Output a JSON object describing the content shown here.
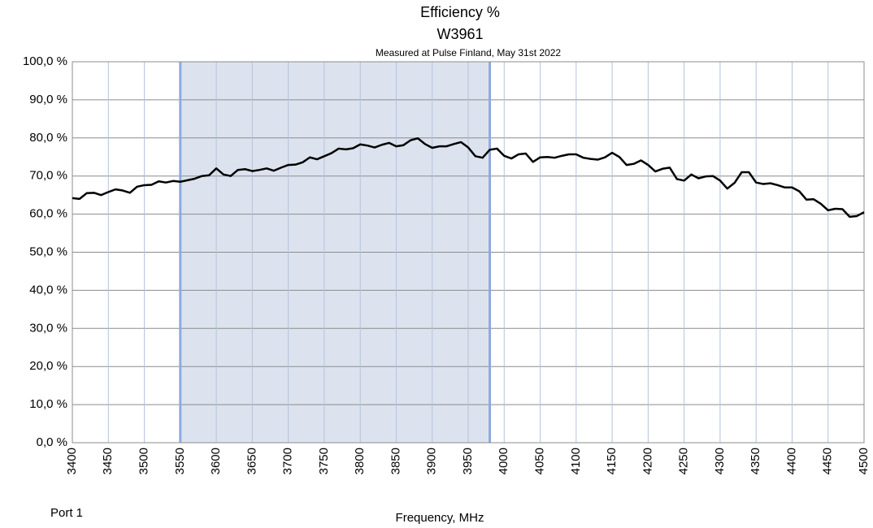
{
  "chart_data": {
    "type": "line",
    "title": "Efficiency %",
    "subtitle": "W3961",
    "note": "Measured at Pulse Finland, May 31st 2022",
    "xlabel": "Frequency, MHz",
    "annotation": "Port 1",
    "x": [
      3400,
      3410,
      3420,
      3430,
      3440,
      3450,
      3460,
      3470,
      3480,
      3490,
      3500,
      3510,
      3520,
      3530,
      3540,
      3550,
      3560,
      3570,
      3580,
      3590,
      3600,
      3610,
      3620,
      3630,
      3640,
      3650,
      3660,
      3670,
      3680,
      3690,
      3700,
      3710,
      3720,
      3730,
      3740,
      3750,
      3760,
      3770,
      3780,
      3790,
      3800,
      3810,
      3820,
      3830,
      3840,
      3850,
      3860,
      3870,
      3880,
      3890,
      3900,
      3910,
      3920,
      3930,
      3940,
      3950,
      3960,
      3970,
      3980,
      3990,
      4000,
      4010,
      4020,
      4030,
      4040,
      4050,
      4060,
      4070,
      4080,
      4090,
      4100,
      4110,
      4120,
      4130,
      4140,
      4150,
      4160,
      4170,
      4180,
      4190,
      4200,
      4210,
      4220,
      4230,
      4240,
      4250,
      4260,
      4270,
      4280,
      4290,
      4300,
      4310,
      4320,
      4330,
      4340,
      4350,
      4360,
      4370,
      4380,
      4390,
      4400,
      4410,
      4420,
      4430,
      4440,
      4450,
      4460,
      4470,
      4480,
      4490,
      4500
    ],
    "series": [
      {
        "name": "Port 1",
        "color": "#000000",
        "values": [
          64.2,
          64.0,
          65.5,
          65.6,
          65.0,
          65.8,
          66.5,
          66.2,
          65.6,
          67.2,
          67.6,
          67.7,
          68.6,
          68.3,
          68.7,
          68.5,
          68.9,
          69.3,
          70.0,
          70.2,
          72.0,
          70.4,
          70.0,
          71.6,
          71.8,
          71.3,
          71.6,
          72.0,
          71.4,
          72.2,
          72.9,
          73.0,
          73.6,
          74.9,
          74.4,
          75.2,
          76.0,
          77.2,
          77.0,
          77.3,
          78.3,
          78.0,
          77.5,
          78.2,
          78.7,
          77.8,
          78.1,
          79.4,
          79.9,
          78.4,
          77.4,
          77.8,
          77.8,
          78.4,
          78.9,
          77.5,
          75.2,
          74.8,
          76.9,
          77.2,
          75.3,
          74.6,
          75.7,
          75.9,
          73.7,
          74.9,
          75.0,
          74.8,
          75.3,
          75.7,
          75.7,
          74.8,
          74.5,
          74.3,
          74.9,
          76.1,
          75.0,
          72.9,
          73.2,
          74.1,
          72.9,
          71.2,
          71.9,
          72.2,
          69.2,
          68.8,
          70.4,
          69.4,
          69.9,
          70.0,
          68.8,
          66.7,
          68.2,
          71.0,
          71.0,
          68.3,
          67.9,
          68.1,
          67.6,
          67.0,
          67.0,
          66.0,
          63.8,
          63.9,
          62.7,
          61.0,
          61.4,
          61.3,
          59.3,
          59.5,
          60.5
        ]
      }
    ],
    "xlim": [
      3400,
      4500
    ],
    "xticks": [
      3400,
      3450,
      3500,
      3550,
      3600,
      3650,
      3700,
      3750,
      3800,
      3850,
      3900,
      3950,
      4000,
      4050,
      4100,
      4150,
      4200,
      4250,
      4300,
      4350,
      4400,
      4450,
      4500
    ],
    "ylim": [
      0,
      100
    ],
    "yticks": [
      {
        "value": 0,
        "label": "0,0 %"
      },
      {
        "value": 10,
        "label": "10,0 %"
      },
      {
        "value": 20,
        "label": "20,0 %"
      },
      {
        "value": 30,
        "label": "30,0 %"
      },
      {
        "value": 40,
        "label": "40,0 %"
      },
      {
        "value": 50,
        "label": "50,0 %"
      },
      {
        "value": 60,
        "label": "60,0 %"
      },
      {
        "value": 70,
        "label": "70,0 %"
      },
      {
        "value": 80,
        "label": "80,0 %"
      },
      {
        "value": 90,
        "label": "90,0 %"
      },
      {
        "value": 100,
        "label": "100,0 %"
      }
    ],
    "highlight": {
      "xrange": [
        3550,
        3980
      ],
      "fill": "#dde3ee",
      "edge": "#8eaadb"
    },
    "grid": true
  }
}
